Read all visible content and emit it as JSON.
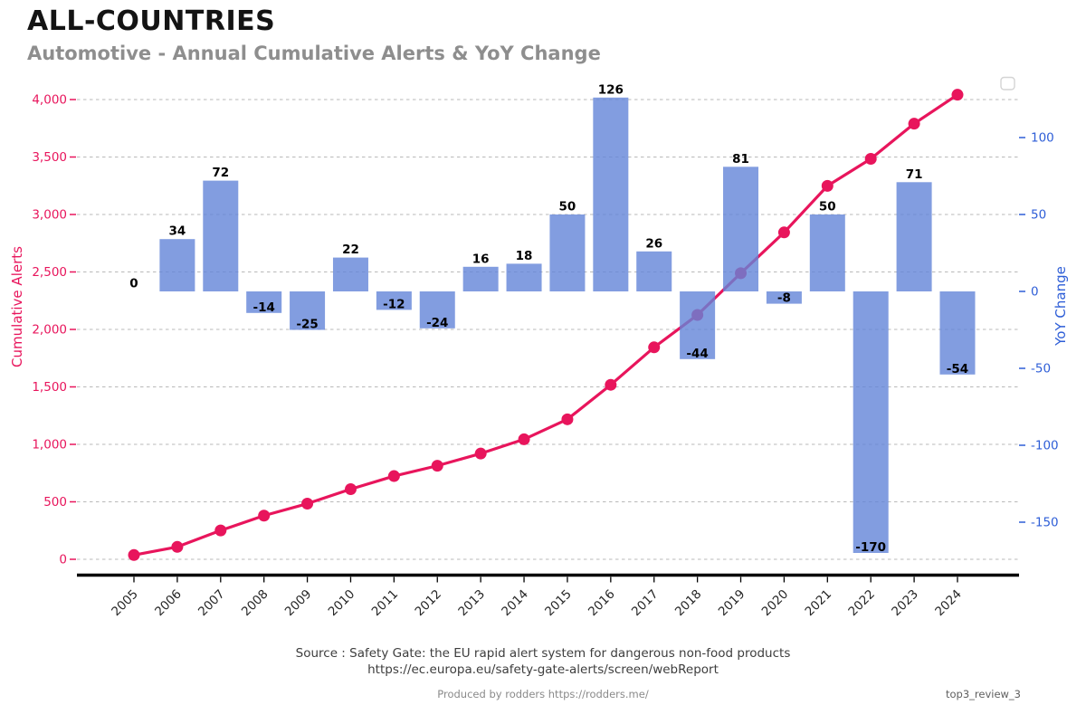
{
  "header": {
    "title": "ALL-COUNTRIES",
    "subtitle": "Automotive - Annual Cumulative Alerts & YoY Change"
  },
  "chart_data": {
    "type": "bar+line",
    "title": "ALL-COUNTRIES",
    "subtitle": "Automotive - Annual Cumulative Alerts & YoY Change",
    "categories": [
      "2005",
      "2006",
      "2007",
      "2008",
      "2009",
      "2010",
      "2011",
      "2012",
      "2013",
      "2014",
      "2015",
      "2016",
      "2017",
      "2018",
      "2019",
      "2020",
      "2021",
      "2022",
      "2023",
      "2024"
    ],
    "series": [
      {
        "name": "YoY Change",
        "type": "bar",
        "axis": "right",
        "color": "#6384d8",
        "opacity": 0.8,
        "values": [
          0,
          34,
          72,
          -14,
          -25,
          22,
          -12,
          -24,
          16,
          18,
          50,
          126,
          26,
          -44,
          81,
          -8,
          50,
          -170,
          71,
          -54
        ],
        "value_labels": [
          "0",
          "34",
          "72",
          "-14",
          "-25",
          "22",
          "-12",
          "-24",
          "16",
          "18",
          "50",
          "126",
          "26",
          "-44",
          "81",
          "-8",
          "50",
          "-170",
          "71",
          "-54"
        ]
      },
      {
        "name": "Cumulative Alerts",
        "type": "line",
        "axis": "left",
        "color": "#e8155c",
        "marker": "circle",
        "values": [
          37,
          108,
          251,
          380,
          484,
          610,
          724,
          814,
          920,
          1044,
          1218,
          1518,
          1844,
          2126,
          2489,
          2844,
          3249,
          3484,
          3790,
          4042
        ]
      }
    ],
    "left_axis": {
      "label": "Cumulative Alerts",
      "color": "#e8155c",
      "ticks": [
        0,
        500,
        1000,
        1500,
        2000,
        2500,
        3000,
        3500,
        4000
      ],
      "tick_labels": [
        "0",
        "500",
        "1,000",
        "1,500",
        "2,000",
        "2,500",
        "3,000",
        "3,500",
        "4,000"
      ],
      "ylim": [
        0,
        4350
      ]
    },
    "right_axis": {
      "label": "YoY Change",
      "color": "#2e5ed7",
      "ticks": [
        100,
        50,
        0,
        -50,
        -100,
        -150
      ],
      "tick_labels": [
        "100",
        "50",
        "0",
        "-50",
        "-100",
        "-150"
      ],
      "ylim": [
        -185,
        139
      ]
    },
    "grid": "horizontal-dashed",
    "grid_color": "#b9b9b9",
    "legend": {
      "visible": true,
      "position": "upper-right",
      "entries": []
    }
  },
  "footer": {
    "source_line1": "Source : Safety Gate: the EU rapid alert system for dangerous non-food products",
    "source_line2": "https://ec.europa.eu/safety-gate-alerts/screen/webReport",
    "produced_by": "Produced by rodders https://rodders.me/",
    "review_tag": "top3_review_3"
  }
}
